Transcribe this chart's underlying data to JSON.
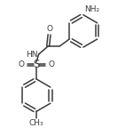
{
  "bg_color": "#ffffff",
  "line_color": "#3a3a3a",
  "line_width": 1.1,
  "font_size": 6.5,
  "fig_width": 1.5,
  "fig_height": 1.44,
  "dpi": 100,
  "xlim": [
    0,
    10
  ],
  "ylim": [
    0,
    9.6
  ]
}
